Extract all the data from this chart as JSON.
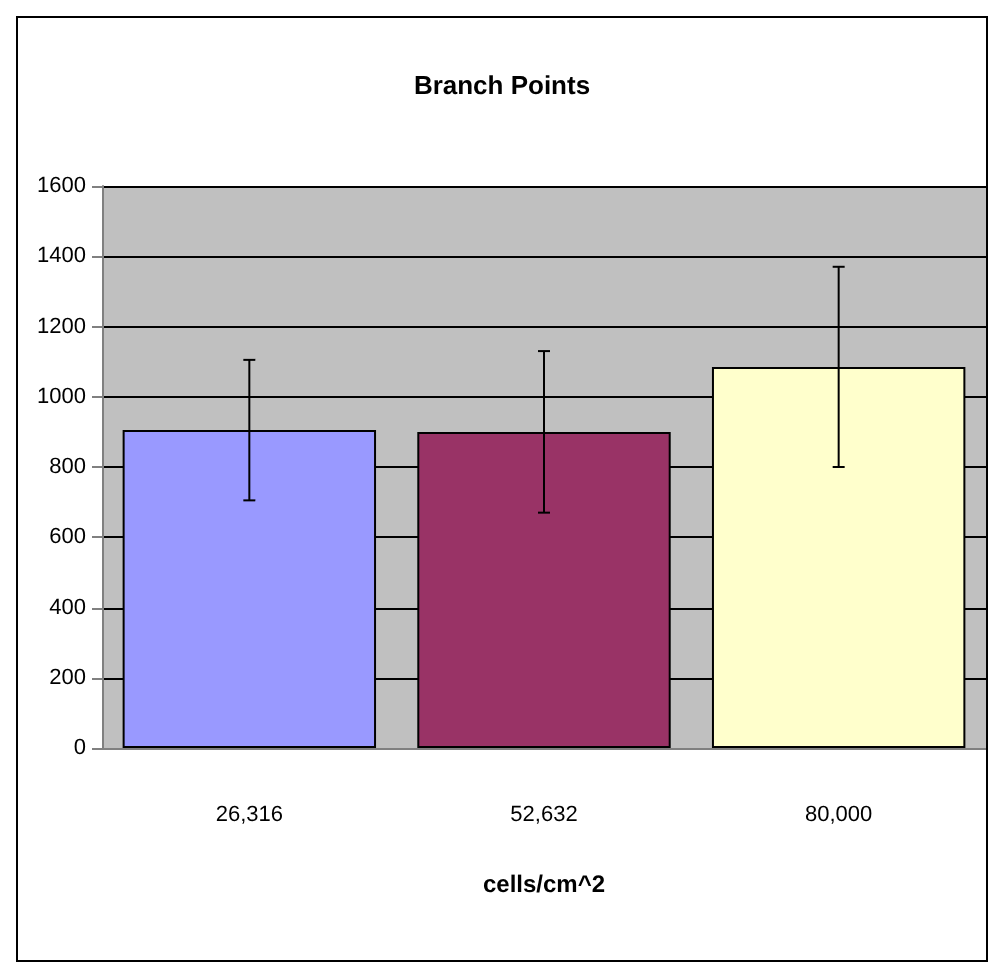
{
  "chart_data": {
    "type": "bar",
    "title": "Branch Points",
    "xlabel": "cells/cm^2",
    "categories": [
      "26,316",
      "52,632",
      "80,000"
    ],
    "values": [
      905,
      900,
      1085
    ],
    "colors": [
      "#9999ff",
      "#993366",
      "#ffffcc"
    ],
    "errors": [
      [
        705,
        1105
      ],
      [
        670,
        1130
      ],
      [
        800,
        1370
      ]
    ],
    "ylim": [
      0,
      1600
    ],
    "yticks": [
      0,
      200,
      400,
      600,
      800,
      1000,
      1200,
      1400,
      1600
    ],
    "grid": "y"
  }
}
